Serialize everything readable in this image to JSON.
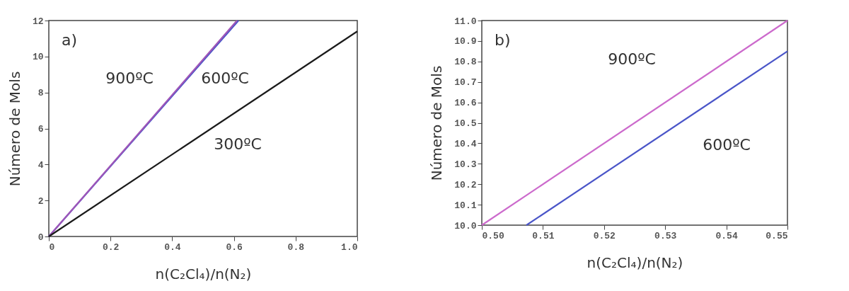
{
  "chart_data": [
    {
      "type": "line",
      "xlabel": "n(C₂Cl₄)/n(N₂)",
      "ylabel": "Número de Mols",
      "annotations": [
        "a)"
      ],
      "xlim": [
        0,
        1
      ],
      "xticks": [
        0,
        0.2,
        0.4,
        0.6,
        0.8,
        {
          "value": 1,
          "label": "1.0"
        }
      ],
      "ylim": [
        0,
        12
      ],
      "yticks": [
        0,
        2,
        4,
        6,
        8,
        10,
        12
      ],
      "grid": false,
      "legend": false,
      "series": [
        {
          "name": "600ºC",
          "color": "#4a55c8",
          "x": [
            0,
            0.615
          ],
          "values": [
            0,
            12
          ]
        },
        {
          "name": "900ºC",
          "color": "#a055b8",
          "x": [
            0,
            0.61
          ],
          "values": [
            0,
            12
          ]
        },
        {
          "name": "300ºC",
          "color": "#1a1a1a",
          "x": [
            0,
            1
          ],
          "values": [
            0,
            11.4
          ]
        }
      ]
    },
    {
      "type": "line",
      "xlabel": "n(C₂Cl₄)/n(N₂)",
      "ylabel": "Número de Mols",
      "annotations": [
        "b)"
      ],
      "xlim": [
        0.5,
        0.55
      ],
      "xticks": [
        {
          "value": 0.5,
          "label": "0.50"
        },
        0.51,
        0.52,
        0.53,
        0.54,
        {
          "value": 0.55,
          "label": "0.55"
        }
      ],
      "ylim": [
        10,
        11
      ],
      "yticks": [
        {
          "value": 10,
          "label": "10.0"
        },
        10.1,
        10.2,
        10.3,
        10.4,
        10.5,
        10.6,
        10.7,
        10.8,
        10.9,
        {
          "value": 11,
          "label": "11.0"
        }
      ],
      "grid": false,
      "legend": false,
      "series": [
        {
          "name": "900ºC",
          "color": "#cc6acc",
          "x": [
            0.5,
            0.55
          ],
          "values": [
            10,
            11
          ]
        },
        {
          "name": "600ºC",
          "color": "#4a55c8",
          "x": [
            0.5073,
            0.55
          ],
          "values": [
            10,
            10.85
          ]
        }
      ]
    }
  ]
}
